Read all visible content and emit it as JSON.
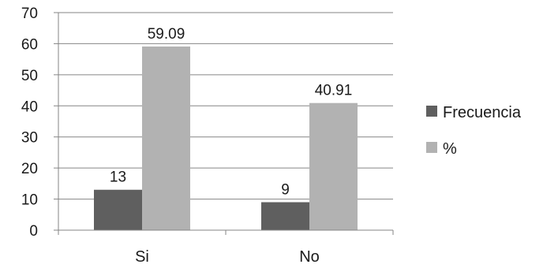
{
  "chart_data": {
    "type": "bar",
    "categories": [
      "Si",
      "No"
    ],
    "series": [
      {
        "name": "Frecuencia",
        "values": [
          13,
          9
        ],
        "labels": [
          "13",
          "9"
        ],
        "color": "#5f5f5f"
      },
      {
        "name": "%",
        "values": [
          59.09,
          40.91
        ],
        "labels": [
          "59.09",
          "40.91"
        ],
        "color": "#b2b2b2"
      }
    ],
    "ylim": [
      0,
      70
    ],
    "yticks": [
      "0",
      "10",
      "20",
      "30",
      "40",
      "50",
      "60",
      "70"
    ],
    "grid": true,
    "legend_position": "right",
    "title": "",
    "xlabel": "",
    "ylabel": ""
  }
}
